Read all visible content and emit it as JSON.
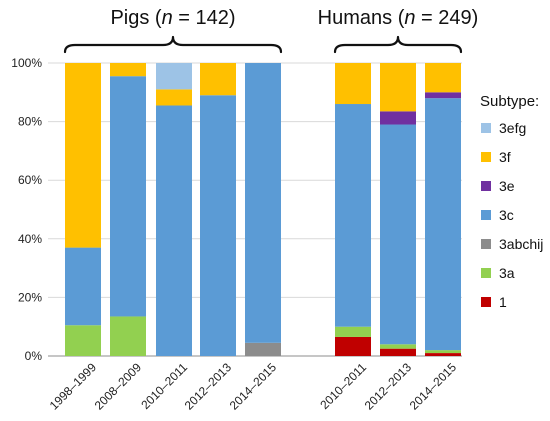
{
  "chart_data": {
    "type": "bar",
    "stacked": true,
    "ylim": [
      0,
      100
    ],
    "y_ticks": [
      "0%",
      "20%",
      "40%",
      "60%",
      "80%",
      "100%"
    ],
    "groups": [
      {
        "title_parts": [
          "Pigs (",
          "n",
          " = 142)"
        ],
        "categories": [
          "1998–1999",
          "2008–2009",
          "2010–2011",
          "2012–2013",
          "2014–2015"
        ]
      },
      {
        "title_parts": [
          "Humans (",
          "n",
          " = 249)"
        ],
        "categories": [
          "2010–2011",
          "2012–2013",
          "2014–2015"
        ]
      }
    ],
    "legend_title": "Subtype:",
    "legend_order": [
      "3efg",
      "3f",
      "3e",
      "3c",
      "3abchij",
      "3a",
      "1"
    ],
    "series": [
      {
        "name": "1",
        "color": "#c00000",
        "values": [
          0,
          0,
          0,
          0,
          0,
          6.5,
          2.5,
          1
        ]
      },
      {
        "name": "3a",
        "color": "#92d050",
        "values": [
          10.5,
          13.5,
          0,
          0,
          0,
          3.5,
          1.5,
          1
        ]
      },
      {
        "name": "3abchij",
        "color": "#8c8c8c",
        "values": [
          0,
          0,
          0,
          0,
          4.5,
          0,
          0,
          0
        ]
      },
      {
        "name": "3c",
        "color": "#5b9bd5",
        "values": [
          26.5,
          82,
          85.5,
          89,
          95.5,
          76,
          75,
          86
        ]
      },
      {
        "name": "3e",
        "color": "#7030a0",
        "values": [
          0,
          0,
          0,
          0,
          0,
          0,
          4.5,
          2
        ]
      },
      {
        "name": "3f",
        "color": "#ffc000",
        "values": [
          63,
          4.5,
          5.5,
          11,
          0,
          14,
          16.5,
          10
        ]
      },
      {
        "name": "3efg",
        "color": "#9dc3e6",
        "values": [
          0,
          0,
          9,
          0,
          0,
          0,
          0,
          0
        ]
      }
    ]
  }
}
